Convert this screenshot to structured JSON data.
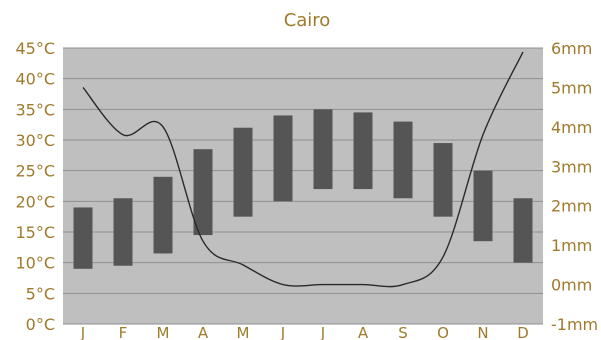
{
  "chart_data": {
    "type": "bar",
    "title": "Cairo",
    "categories": [
      "J",
      "F",
      "M",
      "A",
      "M",
      "J",
      "J",
      "A",
      "S",
      "O",
      "N",
      "D"
    ],
    "temperature_series": {
      "low": [
        9,
        9.5,
        11.5,
        14.5,
        17.5,
        20,
        22,
        22,
        20.5,
        17.5,
        13.5,
        10
      ],
      "high": [
        19,
        20.5,
        24,
        28.5,
        32,
        34,
        35,
        34.5,
        33,
        29.5,
        25,
        20.5
      ]
    },
    "precipitation_series": {
      "values": [
        5,
        3.8,
        4,
        1.1,
        0.5,
        0,
        0,
        0,
        0,
        0.7,
        3.8,
        5.9
      ]
    },
    "left_axis": {
      "ylim": [
        0,
        45
      ],
      "ticks": [
        0,
        5,
        10,
        15,
        20,
        25,
        30,
        35,
        40,
        45
      ],
      "tick_labels": [
        "0°C",
        "5°C",
        "10°C",
        "15°C",
        "20°C",
        "25°C",
        "30°C",
        "35°C",
        "40°C",
        "45°C"
      ]
    },
    "right_axis": {
      "ylim": [
        -1,
        6
      ],
      "ticks": [
        -1,
        0,
        1,
        2,
        3,
        4,
        5,
        6
      ],
      "tick_labels": [
        "-1mm",
        "0mm",
        "1mm",
        "2mm",
        "3mm",
        "4mm",
        "5mm",
        "6mm"
      ]
    },
    "grid": true,
    "colors": {
      "plot_background": "#bfbfbf",
      "bar": "#555555",
      "line": "#2a2a2a",
      "text": "#a07a2c",
      "gridline": "#8f8f8f"
    }
  }
}
